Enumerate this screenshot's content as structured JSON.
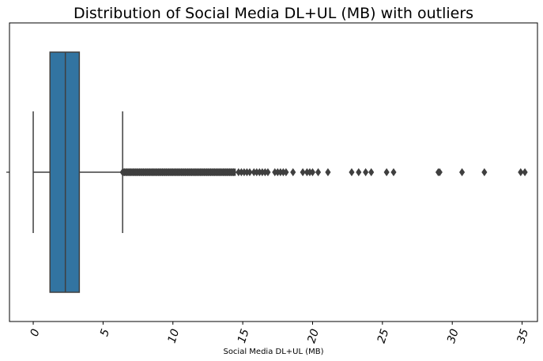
{
  "chart_data": {
    "type": "boxplot",
    "title": "Distribution of Social Media DL+UL (MB) with outliers",
    "xlabel": "Social Media DL+UL (MB)",
    "ylabel": "",
    "xlim": [
      -1.7,
      36.1
    ],
    "xticks": [
      {
        "value": 0,
        "label": "0"
      },
      {
        "value": 5,
        "label": "5"
      },
      {
        "value": 10,
        "label": "10"
      },
      {
        "value": 15,
        "label": "15"
      },
      {
        "value": 20,
        "label": "20"
      },
      {
        "value": 25,
        "label": "25"
      },
      {
        "value": 30,
        "label": "30"
      },
      {
        "value": 35,
        "label": "35"
      }
    ],
    "box": {
      "whisker_low": 0.0,
      "q1": 1.2,
      "median": 2.3,
      "q3": 3.3,
      "whisker_high": 6.4,
      "color": "#3274a1",
      "edge_color": "#3f3f3f"
    },
    "outlier_dense_range": [
      6.4,
      14.5
    ],
    "outliers": [
      14.7,
      14.9,
      15.1,
      15.3,
      15.5,
      15.8,
      16.0,
      16.2,
      16.4,
      16.6,
      16.8,
      17.3,
      17.5,
      17.7,
      17.9,
      18.1,
      18.6,
      19.3,
      19.6,
      19.8,
      20.0,
      20.4,
      21.1,
      22.8,
      23.3,
      23.8,
      24.2,
      25.3,
      25.8,
      29.0,
      29.1,
      30.7,
      32.3,
      34.9,
      35.2
    ],
    "grid": false
  }
}
